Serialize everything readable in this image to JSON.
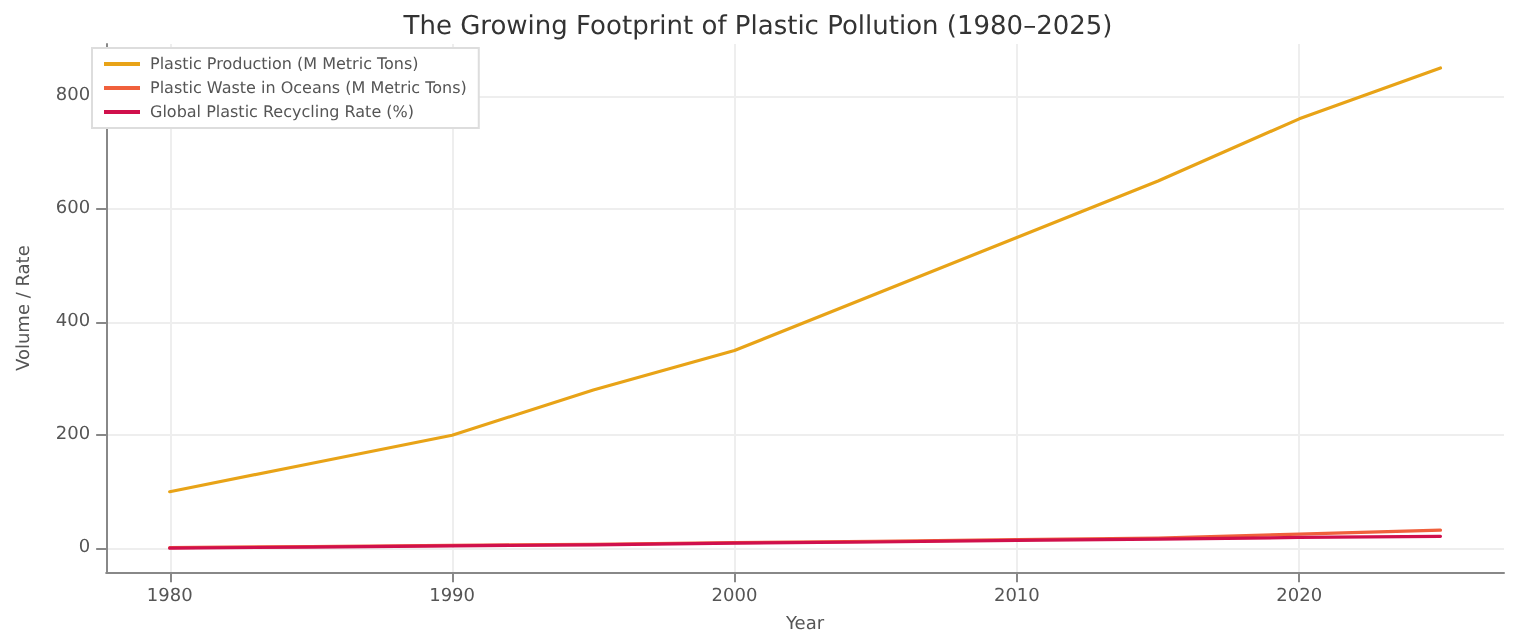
{
  "chart_data": {
    "type": "line",
    "title": "The Growing Footprint of Plastic Pollution (1980–2025)",
    "xlabel": "Year",
    "ylabel": "Volume / Rate",
    "x": [
      1980,
      1985,
      1990,
      1995,
      2000,
      2005,
      2010,
      2015,
      2020,
      2025
    ],
    "series": [
      {
        "name": "Plastic Production (M Metric Tons)",
        "color": "#e8a317",
        "values": [
          100,
          150,
          200,
          280,
          350,
          450,
          550,
          650,
          760,
          850
        ]
      },
      {
        "name": "Plastic Waste in Oceans (M Metric Tons)",
        "color": "#f0603c",
        "values": [
          1,
          3,
          5,
          7,
          10,
          12,
          15,
          18,
          25,
          32
        ]
      },
      {
        "name": "Global Plastic Recycling Rate (%)",
        "color": "#d0104c",
        "values": [
          0,
          2,
          4,
          6,
          9,
          11,
          14,
          16,
          19,
          21
        ]
      }
    ],
    "xlim": [
      1977.75,
      2027.25
    ],
    "xticks": [
      1980,
      1990,
      2000,
      2010,
      2020
    ],
    "ylim": [
      -42.5,
      892.5
    ],
    "yticks": [
      0,
      200,
      400,
      600,
      800
    ],
    "grid": true,
    "legend": "top left",
    "marker": "none",
    "line_style": "solid"
  }
}
